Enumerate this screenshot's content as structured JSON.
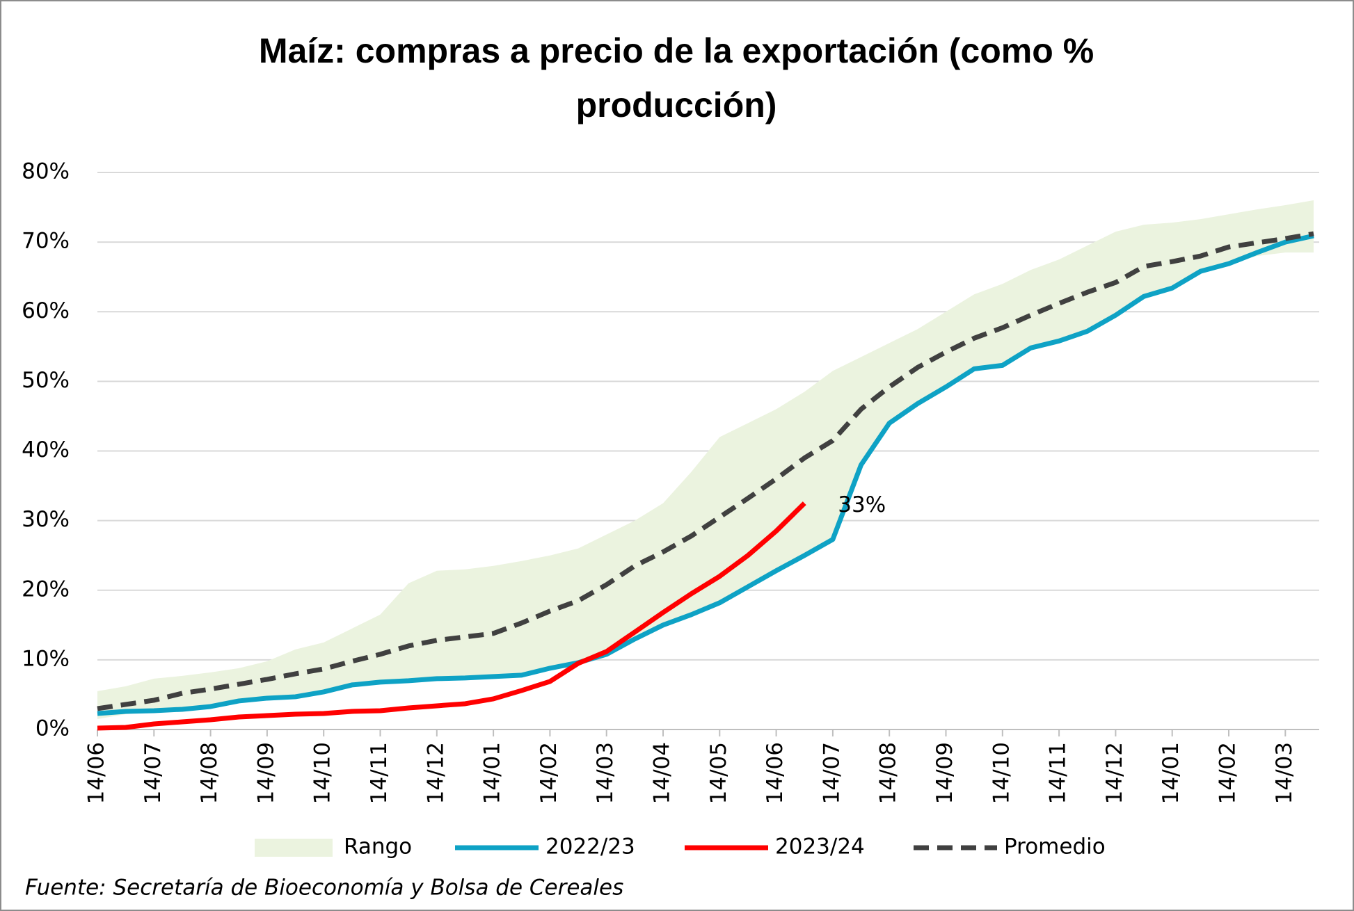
{
  "chart_data": {
    "type": "line",
    "title": "Maíz: compras a precio de la exportación (como % producción)",
    "footnote": "Fuente: Secretaría de Bioeconomía y Bolsa de Cereales",
    "categories": [
      "14/06",
      null,
      "14/07",
      null,
      "14/08",
      null,
      "14/09",
      null,
      "14/10",
      null,
      "14/11",
      null,
      "14/12",
      null,
      "14/01",
      null,
      "14/02",
      null,
      "14/03",
      null,
      "14/04",
      null,
      "14/05",
      null,
      "14/06",
      null,
      "14/07",
      null,
      "14/08",
      null,
      "14/09",
      null,
      "14/10",
      null,
      "14/11",
      null,
      "14/12",
      null,
      "14/01",
      null,
      "14/02",
      null,
      "14/03",
      null
    ],
    "ylim": [
      0,
      80
    ],
    "yticks": [
      {
        "value": 0,
        "label": "0%"
      },
      {
        "value": 10,
        "label": "10%"
      },
      {
        "value": 20,
        "label": "20%"
      },
      {
        "value": 30,
        "label": "30%"
      },
      {
        "value": 40,
        "label": "40%"
      },
      {
        "value": 50,
        "label": "50%"
      },
      {
        "value": 60,
        "label": "60%"
      },
      {
        "value": 70,
        "label": "70%"
      },
      {
        "value": 80,
        "label": "80%"
      }
    ],
    "grid": true,
    "legend": "bottom",
    "series": [
      {
        "name": "Rango",
        "kind": "range",
        "color": "#ebf3df",
        "low": [
          1.5,
          2.2,
          2.6,
          2.9,
          3.2,
          4.1,
          4.5,
          4.8,
          5.4,
          6.4,
          6.8,
          7,
          7.3,
          7.4,
          7.6,
          7.8,
          8.8,
          9.6,
          10.8,
          13,
          15,
          16.5,
          18.2,
          20.5,
          22.8,
          25,
          27.3,
          38,
          44,
          46.8,
          49.2,
          51.8,
          52.3,
          54.8,
          55.8,
          57.2,
          59.5,
          62.2,
          63.4,
          65.8,
          66.9,
          68,
          68.5,
          68.5
        ],
        "high": [
          5.5,
          6.2,
          7.3,
          7.7,
          8.2,
          8.8,
          9.8,
          11.5,
          12.5,
          14.5,
          16.5,
          21,
          22.8,
          23,
          23.5,
          24.2,
          25,
          26,
          28,
          30,
          32.5,
          37,
          42,
          44,
          46,
          48.5,
          51.5,
          53.5,
          55.5,
          57.5,
          60,
          62.5,
          64,
          66,
          67.5,
          69.5,
          71.5,
          72.5,
          72.8,
          73.3,
          74,
          74.7,
          75.3,
          76
        ]
      },
      {
        "name": "2022/23",
        "color": "#0ea2c5",
        "values": [
          2.3,
          2.6,
          2.7,
          2.9,
          3.3,
          4.1,
          4.5,
          4.7,
          5.4,
          6.4,
          6.8,
          7,
          7.3,
          7.4,
          7.6,
          7.8,
          8.8,
          9.6,
          10.8,
          13,
          15,
          16.5,
          18.2,
          20.5,
          22.8,
          25,
          27.3,
          38,
          44,
          46.8,
          49.2,
          51.8,
          52.3,
          54.8,
          55.8,
          57.2,
          59.5,
          62.2,
          63.4,
          65.8,
          66.9,
          68.5,
          70,
          70.9
        ]
      },
      {
        "name": "2023/24",
        "color": "#ff0000",
        "values": [
          0.2,
          0.3,
          0.8,
          1.1,
          1.4,
          1.8,
          2,
          2.2,
          2.3,
          2.6,
          2.7,
          3.1,
          3.4,
          3.7,
          4.4,
          5.6,
          6.9,
          9.5,
          11.2,
          14,
          16.8,
          19.5,
          22,
          25,
          28.5,
          32.5,
          null,
          null,
          null,
          null,
          null,
          null,
          null,
          null,
          null,
          null,
          null,
          null,
          null,
          null,
          null,
          null,
          null,
          null
        ],
        "end_label": "33%"
      },
      {
        "name": "Promedio",
        "color": "#404040",
        "dashed": true,
        "values": [
          3,
          3.6,
          4.2,
          5.2,
          5.8,
          6.5,
          7.2,
          8,
          8.7,
          9.8,
          10.8,
          12,
          12.8,
          13.3,
          13.8,
          15.3,
          17,
          18.5,
          20.8,
          23.5,
          25.5,
          27.8,
          30.5,
          33.2,
          36,
          39,
          41.5,
          46,
          49.2,
          52,
          54.2,
          56.2,
          57.7,
          59.5,
          61.2,
          62.8,
          64.2,
          66.5,
          67.2,
          68,
          69.3,
          69.9,
          70.5,
          71.2
        ]
      }
    ]
  }
}
